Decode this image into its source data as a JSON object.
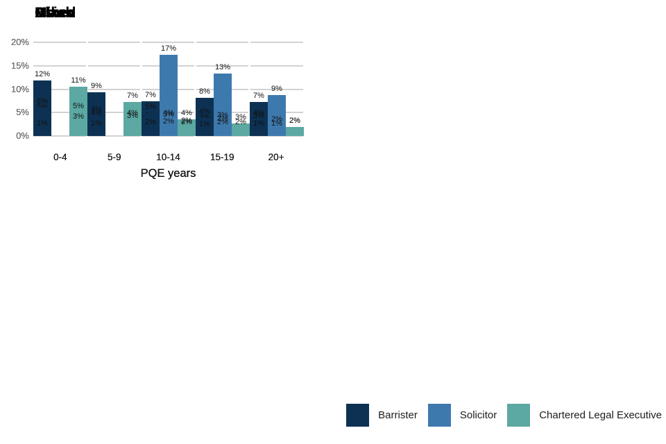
{
  "figure": {
    "background": "#ffffff",
    "gridline_color": "#d2d2d2",
    "axis_text_color": "#6e6e6e"
  },
  "legend": {
    "items": [
      {
        "label": "Barrister",
        "color": "#0d3152"
      },
      {
        "label": "Solicitor",
        "color": "#3e79ae"
      },
      {
        "label": "Chartered Legal Executive",
        "color": "#5ca8a2"
      }
    ]
  },
  "chart_data": [
    {
      "type": "bar",
      "title": "Asian",
      "xlabel": "PQE years",
      "categories": [
        "0-4",
        "5-9",
        "10-14",
        "15-19",
        "20+"
      ],
      "ylim": [
        0,
        20
      ],
      "yticks": [
        "0%",
        "5%",
        "10%",
        "15%",
        "20%"
      ],
      "grid": "horizontal",
      "series": [
        {
          "name": "Barrister",
          "values": [
            11.9,
            9.3,
            7.4,
            8.1,
            7.2
          ],
          "labels": [
            "12%",
            "9%",
            "7%",
            "8%",
            "7%"
          ]
        },
        {
          "name": "Solicitor",
          "values": [
            null,
            null,
            17.4,
            13.3,
            8.7
          ],
          "labels": [
            "",
            "",
            "17%",
            "13%",
            "9%"
          ]
        },
        {
          "name": "Chartered Legal Executive",
          "values": [
            10.5,
            7.3,
            3.6,
            2.6,
            2.0
          ],
          "labels": [
            "11%",
            "7%",
            "4%",
            "3%",
            "2%"
          ]
        }
      ]
    },
    {
      "type": "bar",
      "title": "Black",
      "xlabel": "PQE years",
      "categories": [
        "0-4",
        "5-9",
        "10-14",
        "15-19",
        "20+"
      ],
      "ylim": [
        0,
        20
      ],
      "yticks": [
        "0%",
        "5%",
        "10%",
        "15%",
        "20%"
      ],
      "grid": "horizontal",
      "series": [
        {
          "name": "Barrister",
          "values": [
            4.9,
            3.6,
            2.9,
            2.6,
            3.6
          ],
          "labels": [
            "5%",
            "4%",
            "3%",
            "3%",
            "4%"
          ]
        },
        {
          "name": "Solicitor",
          "values": [
            null,
            null,
            3.6,
            3.1,
            2.2
          ],
          "labels": [
            "",
            "",
            "4%",
            "3%",
            "2%"
          ]
        },
        {
          "name": "Chartered Legal Executive",
          "values": [
            5.1,
            3.6,
            2.0,
            1.6,
            1.9
          ],
          "labels": [
            "5%",
            "4%",
            "2%",
            "2%",
            "2%"
          ]
        }
      ]
    },
    {
      "type": "bar",
      "title": "Mixed",
      "xlabel": "PQE years",
      "categories": [
        "0-4",
        "5-9",
        "10-14",
        "15-19",
        "20+"
      ],
      "ylim": [
        0,
        20
      ],
      "yticks": [
        "0%",
        "5%",
        "10%",
        "15%",
        "20%"
      ],
      "grid": "horizontal",
      "series": [
        {
          "name": "Barrister",
          "values": [
            6.1,
            4.3,
            4.9,
            3.9,
            2.9
          ],
          "labels": [
            "6%",
            "4%",
            "5%",
            "4%",
            "3%"
          ]
        },
        {
          "name": "Solicitor",
          "values": [
            null,
            null,
            3.2,
            2.4,
            0.7
          ],
          "labels": [
            "",
            "",
            "3%",
            "2%",
            ""
          ]
        },
        {
          "name": "Chartered Legal Executive",
          "values": [
            2.8,
            2.9,
            1.6,
            0.9,
            0.7
          ],
          "labels": [
            "3%",
            "3%",
            "2%",
            "",
            ""
          ]
        }
      ]
    },
    {
      "type": "bar",
      "title": "Other",
      "xlabel": "PQE years",
      "categories": [
        "0-4",
        "5-9",
        "10-14",
        "15-19",
        "20+"
      ],
      "ylim": [
        0,
        20
      ],
      "yticks": [
        "0%",
        "5%",
        "10%",
        "15%",
        "20%"
      ],
      "grid": "horizontal",
      "series": [
        {
          "name": "Barrister",
          "values": [
            1.4,
            1.4,
            1.6,
            1.2,
            1.4
          ],
          "labels": [
            "1%",
            "1%",
            "2%",
            "1%",
            "1%"
          ]
        },
        {
          "name": "Solicitor",
          "values": [
            null,
            null,
            1.8,
            1.6,
            1.4
          ],
          "labels": [
            "",
            "",
            "2%",
            "2%",
            "1%"
          ]
        },
        {
          "name": "Chartered Legal Executive",
          "values": [
            0.5,
            null,
            null,
            0.2,
            null
          ],
          "labels": [
            "",
            "",
            "",
            "",
            ""
          ]
        }
      ]
    }
  ]
}
